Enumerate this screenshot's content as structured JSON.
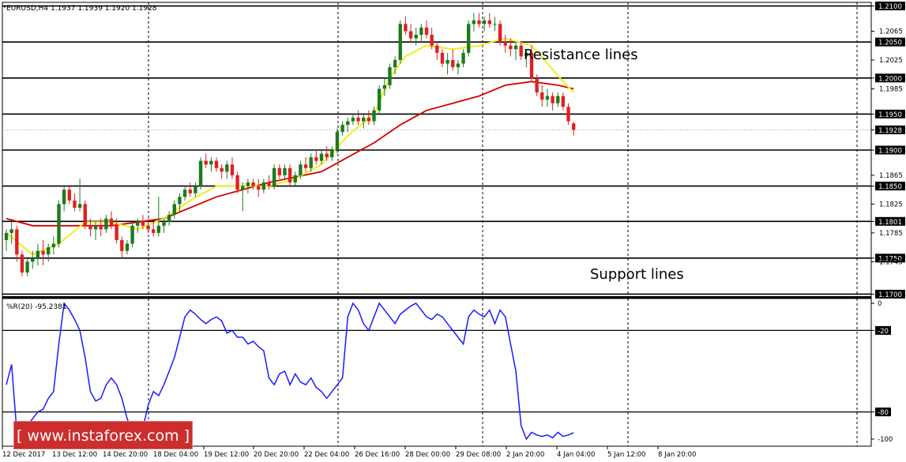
{
  "chart_data": {
    "type": "candlestick",
    "symbol_header": "EURUSD,H4  1.1937 1.1939 1.1920 1.1928",
    "price_axis": {
      "labels": [
        "1.2100",
        "1.2065",
        "1.2025",
        "1.2000",
        "1.1985",
        "1.1950",
        "1.1928",
        "1.1900",
        "1.1865",
        "1.1850",
        "1.1825",
        "1.1801",
        "1.1785",
        "1.1750",
        "1.1745",
        "1.1700"
      ],
      "boxed": [
        "1.2100",
        "1.2050",
        "1.2000",
        "1.1950",
        "1.1928",
        "1.1900",
        "1.1850",
        "1.1801",
        "1.1750",
        "1.1700"
      ],
      "plain": [
        "1.2065",
        "1.2025",
        "1.1985",
        "1.1865",
        "1.1825",
        "1.1785",
        "1.1745"
      ],
      "range": [
        1.1695,
        1.2105
      ]
    },
    "horizontal_lines": [
      1.21,
      1.205,
      1.2,
      1.195,
      1.19,
      1.185,
      1.1801,
      1.175,
      1.17
    ],
    "current_price": 1.1928,
    "annotations": {
      "resistance": "Resistance lines",
      "support": "Support lines"
    },
    "x_labels": [
      "12 Dec 2017",
      "13 Dec 12:00",
      "14 Dec 20:00",
      "18 Dec 04:00",
      "19 Dec 12:00",
      "20 Dec 20:00",
      "22 Dec 04:00",
      "26 Dec 16:00",
      "28 Dec 00:00",
      "29 Dec 08:00",
      "2 Jan 20:00",
      "4 Jan 04:00",
      "5 Jan 12:00",
      "8 Jan 20:00"
    ],
    "candles": [
      [
        1.1775,
        1.179,
        1.176,
        1.1785
      ],
      [
        1.1785,
        1.18,
        1.177,
        1.179
      ],
      [
        1.179,
        1.1795,
        1.1745,
        1.1755
      ],
      [
        1.1755,
        1.176,
        1.1725,
        1.173
      ],
      [
        1.173,
        1.175,
        1.1725,
        1.1745
      ],
      [
        1.1745,
        1.176,
        1.1735,
        1.175
      ],
      [
        1.175,
        1.177,
        1.174,
        1.176
      ],
      [
        1.176,
        1.1775,
        1.174,
        1.1755
      ],
      [
        1.1755,
        1.177,
        1.1745,
        1.1765
      ],
      [
        1.1765,
        1.178,
        1.1755,
        1.177
      ],
      [
        1.177,
        1.183,
        1.1765,
        1.1825
      ],
      [
        1.1825,
        1.185,
        1.1815,
        1.1845
      ],
      [
        1.1845,
        1.185,
        1.1825,
        1.183
      ],
      [
        1.183,
        1.184,
        1.1815,
        1.182
      ],
      [
        1.182,
        1.186,
        1.1815,
        1.1825
      ],
      [
        1.1825,
        1.183,
        1.179,
        1.1795
      ],
      [
        1.1795,
        1.1805,
        1.178,
        1.179
      ],
      [
        1.179,
        1.18,
        1.1775,
        1.1795
      ],
      [
        1.1795,
        1.1805,
        1.178,
        1.179
      ],
      [
        1.179,
        1.181,
        1.1785,
        1.1805
      ],
      [
        1.1805,
        1.1815,
        1.179,
        1.1795
      ],
      [
        1.1795,
        1.1805,
        1.177,
        1.1775
      ],
      [
        1.1775,
        1.178,
        1.175,
        1.176
      ],
      [
        1.176,
        1.1775,
        1.1755,
        1.177
      ],
      [
        1.177,
        1.18,
        1.1765,
        1.1795
      ],
      [
        1.1795,
        1.1805,
        1.1785,
        1.18
      ],
      [
        1.18,
        1.181,
        1.179,
        1.1795
      ],
      [
        1.1795,
        1.1805,
        1.1785,
        1.179
      ],
      [
        1.179,
        1.18,
        1.178,
        1.1785
      ],
      [
        1.1785,
        1.1835,
        1.178,
        1.1795
      ],
      [
        1.1795,
        1.1805,
        1.1785,
        1.18
      ],
      [
        1.18,
        1.1815,
        1.1795,
        1.181
      ],
      [
        1.181,
        1.183,
        1.1805,
        1.1825
      ],
      [
        1.1825,
        1.184,
        1.1815,
        1.1835
      ],
      [
        1.1835,
        1.185,
        1.183,
        1.1845
      ],
      [
        1.1845,
        1.1855,
        1.1835,
        1.184
      ],
      [
        1.184,
        1.1855,
        1.1835,
        1.185
      ],
      [
        1.185,
        1.189,
        1.1845,
        1.1885
      ],
      [
        1.1885,
        1.1895,
        1.1875,
        1.188
      ],
      [
        1.188,
        1.189,
        1.187,
        1.1885
      ],
      [
        1.1885,
        1.189,
        1.187,
        1.1875
      ],
      [
        1.1875,
        1.188,
        1.186,
        1.187
      ],
      [
        1.187,
        1.1885,
        1.186,
        1.188
      ],
      [
        1.188,
        1.189,
        1.186,
        1.1865
      ],
      [
        1.1865,
        1.187,
        1.184,
        1.1845
      ],
      [
        1.1845,
        1.1855,
        1.1815,
        1.185
      ],
      [
        1.185,
        1.186,
        1.184,
        1.1855
      ],
      [
        1.1855,
        1.186,
        1.1845,
        1.185
      ],
      [
        1.185,
        1.186,
        1.1835,
        1.1845
      ],
      [
        1.1845,
        1.186,
        1.184,
        1.1855
      ],
      [
        1.1855,
        1.1865,
        1.1845,
        1.185
      ],
      [
        1.185,
        1.188,
        1.1845,
        1.1875
      ],
      [
        1.1875,
        1.188,
        1.186,
        1.1865
      ],
      [
        1.1865,
        1.188,
        1.186,
        1.1875
      ],
      [
        1.1875,
        1.188,
        1.185,
        1.1855
      ],
      [
        1.1855,
        1.187,
        1.185,
        1.1865
      ],
      [
        1.1865,
        1.1885,
        1.186,
        1.188
      ],
      [
        1.188,
        1.189,
        1.187,
        1.1875
      ],
      [
        1.1875,
        1.1895,
        1.187,
        1.189
      ],
      [
        1.189,
        1.19,
        1.188,
        1.1885
      ],
      [
        1.1885,
        1.19,
        1.188,
        1.1895
      ],
      [
        1.1895,
        1.1905,
        1.1885,
        1.189
      ],
      [
        1.189,
        1.1905,
        1.1885,
        1.19
      ],
      [
        1.19,
        1.193,
        1.1895,
        1.1925
      ],
      [
        1.1925,
        1.194,
        1.192,
        1.1935
      ],
      [
        1.1935,
        1.1945,
        1.1925,
        1.194
      ],
      [
        1.194,
        1.195,
        1.1935,
        1.1945
      ],
      [
        1.1945,
        1.1955,
        1.1935,
        1.194
      ],
      [
        1.194,
        1.195,
        1.193,
        1.1945
      ],
      [
        1.1945,
        1.1955,
        1.1935,
        1.194
      ],
      [
        1.194,
        1.196,
        1.1935,
        1.1955
      ],
      [
        1.1955,
        1.199,
        1.195,
        1.1985
      ],
      [
        1.1985,
        1.2,
        1.1975,
        1.199
      ],
      [
        1.199,
        1.202,
        1.1985,
        1.2015
      ],
      [
        1.2015,
        1.203,
        1.2005,
        1.2025
      ],
      [
        1.2025,
        1.208,
        1.202,
        1.2075
      ],
      [
        1.2075,
        1.2085,
        1.206,
        1.2065
      ],
      [
        1.2065,
        1.2075,
        1.205,
        1.2055
      ],
      [
        1.2055,
        1.207,
        1.2045,
        1.206
      ],
      [
        1.206,
        1.2075,
        1.205,
        1.207
      ],
      [
        1.207,
        1.208,
        1.2055,
        1.206
      ],
      [
        1.206,
        1.207,
        1.204,
        1.2045
      ],
      [
        1.2045,
        1.205,
        1.2025,
        1.2035
      ],
      [
        1.2035,
        1.204,
        1.2015,
        1.202
      ],
      [
        1.202,
        1.2035,
        1.2005,
        1.2025
      ],
      [
        1.2025,
        1.204,
        1.201,
        1.2015
      ],
      [
        1.2015,
        1.2025,
        1.2005,
        1.202
      ],
      [
        1.202,
        1.204,
        1.2015,
        1.2035
      ],
      [
        1.2035,
        1.208,
        1.203,
        1.2075
      ],
      [
        1.2075,
        1.209,
        1.2065,
        1.208
      ],
      [
        1.208,
        1.209,
        1.207,
        1.2075
      ],
      [
        1.2075,
        1.2085,
        1.2065,
        1.208
      ],
      [
        1.208,
        1.209,
        1.207,
        1.2075
      ],
      [
        1.2075,
        1.2085,
        1.2065,
        1.2075
      ],
      [
        1.2075,
        1.208,
        1.2045,
        1.205
      ],
      [
        1.205,
        1.206,
        1.2035,
        1.2045
      ],
      [
        1.2045,
        1.2055,
        1.203,
        1.204
      ],
      [
        1.204,
        1.205,
        1.2025,
        1.2045
      ],
      [
        1.2045,
        1.205,
        1.2025,
        1.203
      ],
      [
        1.203,
        1.204,
        1.2015,
        1.2035
      ],
      [
        1.2035,
        1.2045,
        1.1995,
        1.2
      ],
      [
        1.2,
        1.2005,
        1.1975,
        1.198
      ],
      [
        1.198,
        1.199,
        1.196,
        1.197
      ],
      [
        1.197,
        1.1985,
        1.196,
        1.1975
      ],
      [
        1.1975,
        1.198,
        1.1955,
        1.1965
      ],
      [
        1.1965,
        1.198,
        1.196,
        1.1975
      ],
      [
        1.1975,
        1.198,
        1.1955,
        1.196
      ],
      [
        1.196,
        1.1965,
        1.1935,
        1.194
      ],
      [
        1.1937,
        1.1939,
        1.192,
        1.1928
      ]
    ],
    "sma_fast": [
      [
        0,
        1.1785
      ],
      [
        5,
        1.1755
      ],
      [
        10,
        1.177
      ],
      [
        15,
        1.18
      ],
      [
        20,
        1.18
      ],
      [
        25,
        1.179
      ],
      [
        30,
        1.1805
      ],
      [
        35,
        1.183
      ],
      [
        40,
        1.185
      ],
      [
        45,
        1.185
      ],
      [
        50,
        1.185
      ],
      [
        55,
        1.186
      ],
      [
        60,
        1.188
      ],
      [
        65,
        1.192
      ],
      [
        70,
        1.195
      ],
      [
        73,
        1.2
      ],
      [
        76,
        1.203
      ],
      [
        80,
        1.2045
      ],
      [
        85,
        1.204
      ],
      [
        90,
        1.2045
      ],
      [
        95,
        1.2055
      ],
      [
        100,
        1.2045
      ],
      [
        103,
        1.202
      ],
      [
        106,
        1.1995
      ],
      [
        108,
        1.198
      ]
    ],
    "sma_slow": [
      [
        0,
        1.1805
      ],
      [
        5,
        1.1795
      ],
      [
        10,
        1.1795
      ],
      [
        20,
        1.1795
      ],
      [
        30,
        1.1805
      ],
      [
        40,
        1.1835
      ],
      [
        50,
        1.1855
      ],
      [
        60,
        1.187
      ],
      [
        65,
        1.189
      ],
      [
        70,
        1.191
      ],
      [
        75,
        1.1935
      ],
      [
        80,
        1.1955
      ],
      [
        85,
        1.1965
      ],
      [
        90,
        1.1975
      ],
      [
        95,
        1.199
      ],
      [
        100,
        1.1995
      ],
      [
        105,
        1.199
      ],
      [
        108,
        1.1985
      ]
    ],
    "indicator": {
      "label": "%R(20) -95.2381",
      "axis_labels": [
        "0",
        "-20",
        "-80",
        "-100"
      ],
      "levels": [
        -20,
        -80
      ],
      "range": [
        -105,
        1
      ],
      "values": [
        -60,
        -45,
        -95,
        -100,
        -90,
        -85,
        -80,
        -78,
        -70,
        -65,
        -30,
        0,
        -5,
        -12,
        -20,
        -40,
        -65,
        -72,
        -70,
        -60,
        -55,
        -60,
        -70,
        -85,
        -95,
        -93,
        -92,
        -75,
        -65,
        -68,
        -60,
        -50,
        -40,
        -25,
        -10,
        -5,
        -8,
        -12,
        -15,
        -12,
        -10,
        -13,
        -22,
        -20,
        -25,
        -25,
        -30,
        -28,
        -32,
        -35,
        -55,
        -60,
        -52,
        -50,
        -60,
        -52,
        -58,
        -60,
        -55,
        -62,
        -65,
        -70,
        -65,
        -60,
        -55,
        -10,
        0,
        -5,
        -15,
        -20,
        -10,
        0,
        -5,
        -10,
        -15,
        -8,
        -5,
        -2,
        0,
        -5,
        -10,
        -12,
        -8,
        -10,
        -15,
        -20,
        -25,
        -30,
        -10,
        -5,
        -8,
        -10,
        -5,
        -15,
        -5,
        -10,
        -30,
        -50,
        -90,
        -100,
        -95,
        -97,
        -98,
        -97,
        -99,
        -95,
        -98,
        -97,
        -95.2381
      ]
    }
  },
  "watermark": "[ www.instaforex.com ]"
}
